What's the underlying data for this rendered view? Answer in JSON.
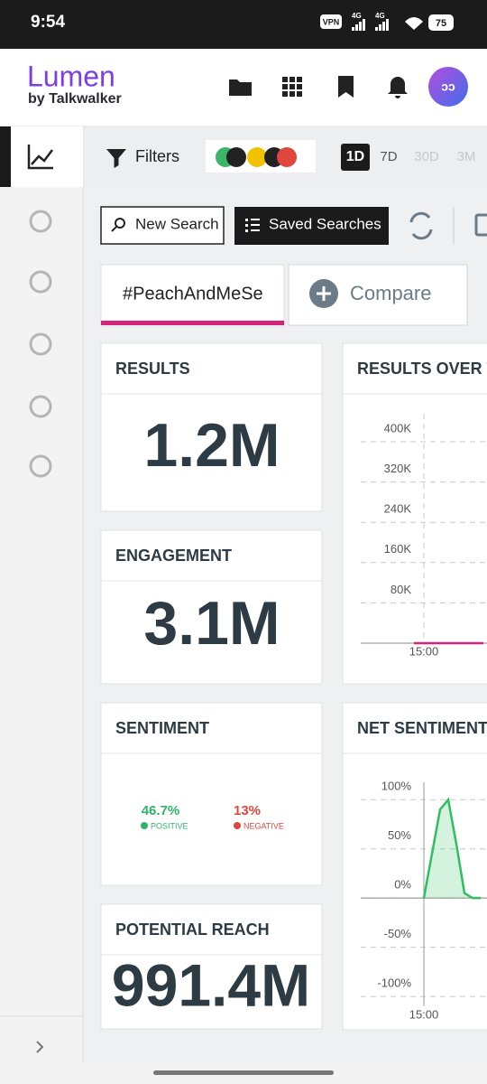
{
  "status_bar": {
    "time": "9:54",
    "vpn": "VPN",
    "network_1": "4G",
    "network_2": "4G",
    "battery": "75"
  },
  "header": {
    "brand": "Lumen",
    "brand_sub": "by Talkwalker",
    "avatar": "ɔɔ"
  },
  "toolbar": {
    "filters": "Filters",
    "periods": [
      "1D",
      "7D",
      "30D",
      "3M"
    ]
  },
  "actions": {
    "new_search": "New Search",
    "saved_searches": "Saved Searches"
  },
  "tabs": {
    "query": "#PeachAndMeSe",
    "compare": "Compare"
  },
  "cards": {
    "results": {
      "title": "RESULTS",
      "value": "1.2M"
    },
    "engagement": {
      "title": "ENGAGEMENT",
      "value": "3.1M"
    },
    "sentiment": {
      "title": "SENTIMENT",
      "positive": {
        "value": "46.7%",
        "label": "POSITIVE"
      },
      "negative": {
        "value": "13%",
        "label": "NEGATIVE"
      }
    },
    "potential_reach": {
      "title": "POTENTIAL REACH",
      "value": "991.4M"
    }
  },
  "charts": [
    {
      "type": "line",
      "title": "RESULTS OVER T",
      "categories": [
        null,
        "15:00",
        null,
        null,
        null,
        null,
        null,
        null
      ],
      "values": [
        0,
        0,
        0,
        0,
        0,
        0,
        0,
        0
      ],
      "color": "#d6247a",
      "ylim": [
        0,
        470000
      ],
      "yticks": [
        {
          "value": 80000,
          "label": "80K"
        },
        {
          "value": 160000,
          "label": "160K"
        },
        {
          "value": 240000,
          "label": "240K"
        },
        {
          "value": 320000,
          "label": "320K"
        },
        {
          "value": 400000,
          "label": "400K"
        }
      ],
      "grid": true
    },
    {
      "type": "area",
      "title": "NET SENTIMENT",
      "categories": [
        "15:00",
        null,
        null,
        null,
        null,
        null,
        null,
        null
      ],
      "values": [
        0,
        45,
        90,
        100,
        55,
        5,
        0,
        0
      ],
      "color": "#2fbf5f",
      "ylim": [
        -110,
        125
      ],
      "yticks": [
        {
          "value": -100,
          "label": "-100%"
        },
        {
          "value": -50,
          "label": "-50%"
        },
        {
          "value": 0,
          "label": "0%"
        },
        {
          "value": 50,
          "label": "50%"
        },
        {
          "value": 100,
          "label": "100%"
        }
      ],
      "grid": true
    }
  ]
}
